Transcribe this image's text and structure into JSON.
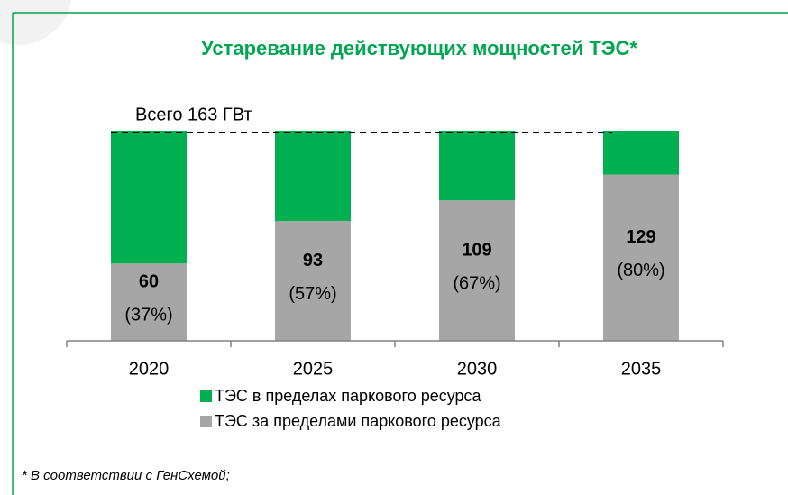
{
  "chart_data": {
    "type": "stacked_bar",
    "title": "Устаревание действующих мощностей ТЭС*",
    "categories": [
      "2020",
      "2025",
      "2030",
      "2035"
    ],
    "series": [
      {
        "name": "ТЭС в пределах паркового ресурса",
        "color": "#00b050",
        "values": [
          103,
          70,
          54,
          34
        ]
      },
      {
        "name": "ТЭС за пределами паркового ресурса",
        "color": "#a6a6a6",
        "values": [
          60,
          93,
          109,
          129
        ],
        "percent_labels": [
          "(37%)",
          "(57%)",
          "(67%)",
          "(80%)"
        ]
      }
    ],
    "annotation": {
      "text": "Всего 163 ГВт",
      "value": 163
    },
    "ylim": [
      0,
      163
    ],
    "footnote": "* В соответствии с ГенСхемой;"
  }
}
